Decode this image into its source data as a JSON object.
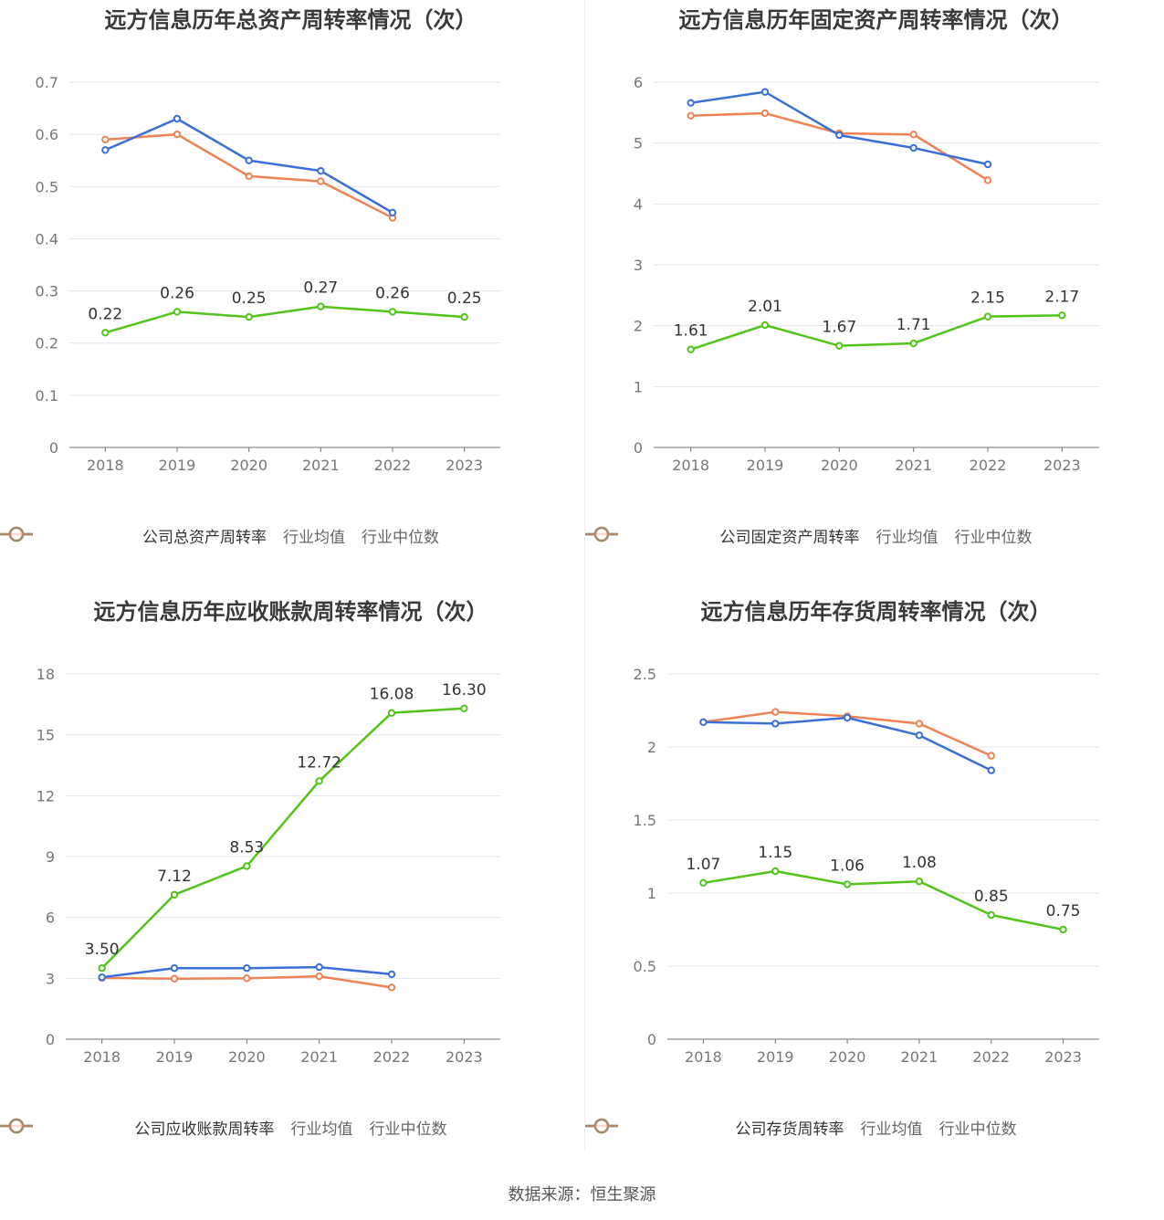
{
  "legend_colors": {
    "company": "#52c41a",
    "average": "#3a6fd8",
    "median": "#ee8355"
  },
  "legend_labels": {
    "average": "行业均值",
    "median": "行业中位数"
  },
  "source_text": "数据来源：恒生聚源",
  "chart_data": [
    {
      "type": "line",
      "title": "远方信息历年总资产周转率情况（次）",
      "categories": [
        "2018",
        "2019",
        "2020",
        "2021",
        "2022",
        "2023"
      ],
      "ylim": [
        0,
        0.7
      ],
      "yticks": [
        0,
        0.1,
        0.2,
        0.3,
        0.4,
        0.5,
        0.6,
        0.7
      ],
      "grid": true,
      "legend_position": "bottom",
      "series": [
        {
          "name": "公司总资产周转率",
          "key": "company",
          "values": [
            0.22,
            0.26,
            0.25,
            0.27,
            0.26,
            0.25
          ],
          "labels": [
            "0.22",
            "0.26",
            "0.25",
            "0.27",
            "0.26",
            "0.25"
          ]
        },
        {
          "name": "行业均值",
          "key": "average",
          "values": [
            0.57,
            0.63,
            0.55,
            0.53,
            0.45,
            null
          ]
        },
        {
          "name": "行业中位数",
          "key": "median",
          "values": [
            0.59,
            0.6,
            0.52,
            0.51,
            0.44,
            null
          ]
        }
      ]
    },
    {
      "type": "line",
      "title": "远方信息历年固定资产周转率情况（次）",
      "categories": [
        "2018",
        "2019",
        "2020",
        "2021",
        "2022",
        "2023"
      ],
      "ylim": [
        0,
        6
      ],
      "yticks": [
        0,
        1,
        2,
        3,
        4,
        5,
        6
      ],
      "grid": true,
      "legend_position": "bottom",
      "series": [
        {
          "name": "公司固定资产周转率",
          "key": "company",
          "values": [
            1.61,
            2.01,
            1.67,
            1.71,
            2.15,
            2.17
          ],
          "labels": [
            "1.61",
            "2.01",
            "1.67",
            "1.71",
            "2.15",
            "2.17"
          ]
        },
        {
          "name": "行业均值",
          "key": "average",
          "values": [
            5.66,
            5.84,
            5.13,
            4.92,
            4.65,
            null
          ]
        },
        {
          "name": "行业中位数",
          "key": "median",
          "values": [
            5.45,
            5.49,
            5.16,
            5.14,
            4.39,
            null
          ]
        }
      ]
    },
    {
      "type": "line",
      "title": "远方信息历年应收账款周转率情况（次）",
      "categories": [
        "2018",
        "2019",
        "2020",
        "2021",
        "2022",
        "2023"
      ],
      "ylim": [
        0,
        18
      ],
      "yticks": [
        0,
        3,
        6,
        9,
        12,
        15,
        18
      ],
      "grid": true,
      "legend_position": "bottom",
      "series": [
        {
          "name": "公司应收账款周转率",
          "key": "company",
          "values": [
            3.5,
            7.12,
            8.53,
            12.72,
            16.08,
            16.3
          ],
          "labels": [
            "3.50",
            "7.12",
            "8.53",
            "12.72",
            "16.08",
            "16.30"
          ]
        },
        {
          "name": "行业均值",
          "key": "average",
          "values": [
            3.05,
            3.5,
            3.5,
            3.55,
            3.2,
            null
          ]
        },
        {
          "name": "行业中位数",
          "key": "median",
          "values": [
            3.02,
            2.98,
            3.0,
            3.1,
            2.55,
            null
          ]
        }
      ]
    },
    {
      "type": "line",
      "title": "远方信息历年存货周转率情况（次）",
      "categories": [
        "2018",
        "2019",
        "2020",
        "2021",
        "2022",
        "2023"
      ],
      "ylim": [
        0,
        2.5
      ],
      "yticks": [
        0,
        0.5,
        1,
        1.5,
        2,
        2.5
      ],
      "grid": true,
      "legend_position": "bottom",
      "series": [
        {
          "name": "公司存货周转率",
          "key": "company",
          "values": [
            1.07,
            1.15,
            1.06,
            1.08,
            0.85,
            0.75
          ],
          "labels": [
            "1.07",
            "1.15",
            "1.06",
            "1.08",
            "0.85",
            "0.75"
          ]
        },
        {
          "name": "行业均值",
          "key": "average",
          "values": [
            2.17,
            2.16,
            2.2,
            2.08,
            1.84,
            null
          ]
        },
        {
          "name": "行业中位数",
          "key": "median",
          "values": [
            2.17,
            2.24,
            2.21,
            2.16,
            1.94,
            null
          ]
        }
      ]
    }
  ]
}
